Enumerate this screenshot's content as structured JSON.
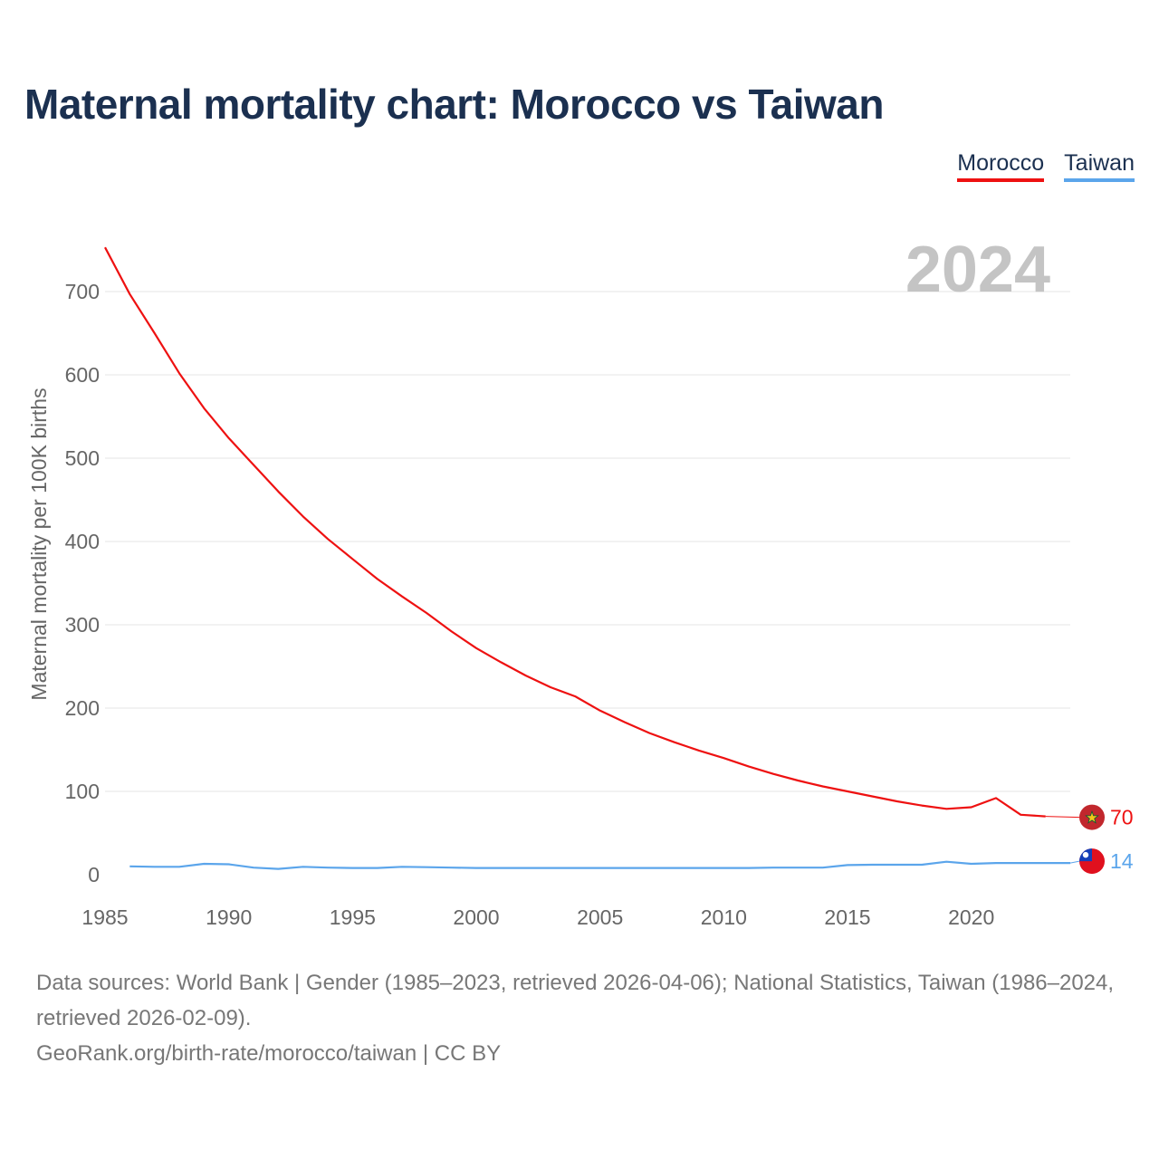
{
  "title": "Maternal mortality chart: Morocco vs Taiwan",
  "legend": {
    "morocco": "Morocco",
    "taiwan": "Taiwan"
  },
  "year_mark": "2024",
  "footer": {
    "line1": "Data sources: World Bank | Gender (1985–2023, retrieved 2026-04-06); National Statistics, Taiwan (1986–2024, retrieved 2026-02-09).",
    "line2": "GeoRank.org/birth-rate/morocco/taiwan | CC BY"
  },
  "colors": {
    "morocco": "#ee1111",
    "taiwan": "#5ba5eb",
    "grid": "#e6e6e6",
    "title": "#1b3050"
  },
  "chart_data": {
    "type": "line",
    "title": "Maternal mortality chart: Morocco vs Taiwan",
    "xlabel": "",
    "ylabel": "Maternal mortality per 100K births",
    "xlim": [
      1985,
      2024
    ],
    "ylim": [
      0,
      750
    ],
    "xticks": [
      1985,
      1990,
      1995,
      2000,
      2005,
      2010,
      2015,
      2020
    ],
    "yticks": [
      0,
      100,
      200,
      300,
      400,
      500,
      600,
      700
    ],
    "legend_position": "top-right",
    "grid": true,
    "series": [
      {
        "name": "Morocco",
        "color": "#ee1111",
        "end_label": "70",
        "x": [
          1985,
          1986,
          1987,
          1988,
          1989,
          1990,
          1991,
          1992,
          1993,
          1994,
          1995,
          1996,
          1997,
          1998,
          1999,
          2000,
          2001,
          2002,
          2003,
          2004,
          2005,
          2006,
          2007,
          2008,
          2009,
          2010,
          2011,
          2012,
          2013,
          2014,
          2015,
          2016,
          2017,
          2018,
          2019,
          2020,
          2021,
          2022,
          2023
        ],
        "values": [
          753,
          697,
          650,
          602,
          560,
          524,
          492,
          460,
          430,
          403,
          379,
          355,
          334,
          314,
          292,
          272,
          255,
          239,
          225,
          214,
          197,
          183,
          170,
          159,
          149,
          140,
          130,
          121,
          113,
          106,
          100,
          94,
          88,
          83,
          79,
          81,
          92,
          72,
          70
        ]
      },
      {
        "name": "Taiwan",
        "color": "#5ba5eb",
        "end_label": "14",
        "x": [
          1986,
          1987,
          1988,
          1989,
          1990,
          1991,
          1992,
          1993,
          1994,
          1995,
          1996,
          1997,
          1998,
          1999,
          2000,
          2001,
          2002,
          2003,
          2004,
          2005,
          2006,
          2007,
          2008,
          2009,
          2010,
          2011,
          2012,
          2013,
          2014,
          2015,
          2016,
          2017,
          2018,
          2019,
          2020,
          2021,
          2022,
          2023,
          2024
        ],
        "values": [
          10,
          9.5,
          9.5,
          13,
          12.5,
          8.5,
          7,
          9.5,
          8.5,
          8,
          8,
          9.5,
          9,
          8.5,
          8,
          8,
          8,
          8,
          8,
          8,
          8,
          8,
          8,
          8,
          8,
          8,
          8.5,
          8.5,
          8.5,
          11.5,
          12,
          12,
          12,
          15.5,
          13,
          14,
          14,
          14,
          14
        ]
      }
    ]
  }
}
